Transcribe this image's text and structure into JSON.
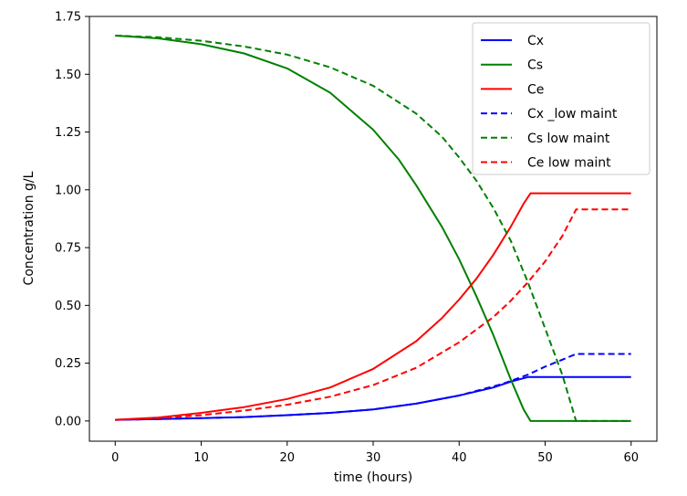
{
  "chart_data": {
    "type": "line",
    "title": "",
    "xlabel": "time (hours)",
    "ylabel": "Concentration g/L",
    "xlim": [
      -3,
      63
    ],
    "ylim": [
      -0.0875,
      1.75
    ],
    "xticks": [
      0,
      10,
      20,
      30,
      40,
      50,
      60
    ],
    "yticks": [
      0.0,
      0.25,
      0.5,
      0.75,
      1.0,
      1.25,
      1.5,
      1.75
    ],
    "xtick_labels": [
      "0",
      "10",
      "20",
      "30",
      "40",
      "50",
      "60"
    ],
    "ytick_labels": [
      "0.00",
      "0.25",
      "0.50",
      "0.75",
      "1.00",
      "1.25",
      "1.50",
      "1.75"
    ],
    "grid": false,
    "legend_position": "top-right",
    "series": [
      {
        "name": "Cx",
        "color": "#0000ff",
        "dash": "solid",
        "x": [
          0,
          5,
          10,
          15,
          20,
          25,
          30,
          35,
          40,
          44,
          46,
          48,
          48.3,
          50,
          55,
          60
        ],
        "y": [
          0.005,
          0.008,
          0.012,
          0.017,
          0.025,
          0.035,
          0.05,
          0.075,
          0.11,
          0.145,
          0.17,
          0.19,
          0.19,
          0.19,
          0.19,
          0.19
        ]
      },
      {
        "name": "Cs",
        "color": "#008000",
        "dash": "solid",
        "x": [
          0,
          5,
          10,
          15,
          20,
          25,
          30,
          33,
          35,
          38,
          40,
          42,
          44,
          46,
          47.5,
          48.3,
          50,
          55,
          60
        ],
        "y": [
          1.667,
          1.655,
          1.63,
          1.59,
          1.525,
          1.42,
          1.26,
          1.13,
          1.02,
          0.84,
          0.7,
          0.54,
          0.37,
          0.18,
          0.05,
          0.0,
          0.0,
          0.0,
          0.0
        ]
      },
      {
        "name": "Ce",
        "color": "#ff0000",
        "dash": "solid",
        "x": [
          0,
          5,
          10,
          15,
          20,
          25,
          30,
          35,
          38,
          40,
          42,
          44,
          46,
          47.5,
          48.3,
          50,
          55,
          60
        ],
        "y": [
          0.005,
          0.015,
          0.035,
          0.06,
          0.095,
          0.145,
          0.225,
          0.345,
          0.445,
          0.525,
          0.615,
          0.72,
          0.84,
          0.94,
          0.985,
          0.985,
          0.985,
          0.985
        ]
      },
      {
        "name": "Cx _low maint",
        "color": "#0000ff",
        "dash": "dashed",
        "x": [
          0,
          5,
          10,
          15,
          20,
          25,
          30,
          35,
          40,
          45,
          48,
          50,
          52,
          53.6,
          55,
          60
        ],
        "y": [
          0.005,
          0.008,
          0.012,
          0.017,
          0.025,
          0.035,
          0.05,
          0.075,
          0.11,
          0.16,
          0.2,
          0.235,
          0.265,
          0.29,
          0.29,
          0.29
        ]
      },
      {
        "name": "Cs low maint",
        "color": "#008000",
        "dash": "dashed",
        "x": [
          0,
          5,
          10,
          15,
          20,
          25,
          30,
          35,
          38,
          40,
          42,
          44,
          46,
          48,
          50,
          52,
          53.6,
          55,
          60
        ],
        "y": [
          1.667,
          1.66,
          1.645,
          1.62,
          1.585,
          1.53,
          1.45,
          1.33,
          1.23,
          1.14,
          1.04,
          0.92,
          0.78,
          0.6,
          0.4,
          0.2,
          0.0,
          0.0,
          0.0
        ]
      },
      {
        "name": "Ce low maint",
        "color": "#ff0000",
        "dash": "dashed",
        "x": [
          0,
          5,
          10,
          15,
          20,
          25,
          30,
          35,
          40,
          44,
          46,
          48,
          50,
          52,
          53.6,
          55,
          60
        ],
        "y": [
          0.005,
          0.012,
          0.025,
          0.045,
          0.07,
          0.105,
          0.155,
          0.23,
          0.34,
          0.45,
          0.52,
          0.6,
          0.69,
          0.8,
          0.915,
          0.915,
          0.915
        ]
      }
    ]
  }
}
